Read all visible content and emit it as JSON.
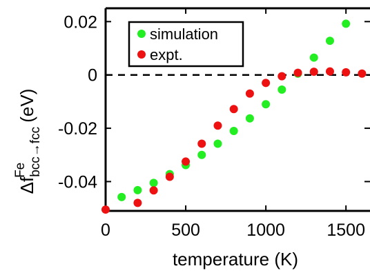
{
  "chart_data": {
    "type": "scatter",
    "title": "",
    "xlabel": "temperature (K)",
    "ylabel": {
      "symbol": "Δf",
      "superscript": "Fe",
      "subscript": "bcc→fcc",
      "unit": "(eV)"
    },
    "xlim": [
      0,
      1650
    ],
    "ylim": [
      -0.051,
      0.025
    ],
    "x_ticks": [
      0,
      500,
      1000,
      1500
    ],
    "x_tick_labels": [
      "0",
      "500",
      "1000",
      "1500"
    ],
    "y_ticks": [
      -0.04,
      -0.02,
      0,
      0.02
    ],
    "y_tick_labels": [
      "-0.04",
      "-0.02",
      "0",
      "0.02"
    ],
    "reference_line": {
      "y": 0,
      "style": "dashed",
      "color": "#000000"
    },
    "legend_position": "top-left",
    "grid": false,
    "series": [
      {
        "name": "simulation",
        "color": "#22ee22",
        "points": [
          [
            100,
            -0.0458
          ],
          [
            200,
            -0.0432
          ],
          [
            300,
            -0.0405
          ],
          [
            400,
            -0.0372
          ],
          [
            500,
            -0.0338
          ],
          [
            600,
            -0.03
          ],
          [
            700,
            -0.0258
          ],
          [
            800,
            -0.021
          ],
          [
            900,
            -0.0163
          ],
          [
            1000,
            -0.011
          ],
          [
            1100,
            -0.0055
          ],
          [
            1200,
            0.0005
          ],
          [
            1300,
            0.0065
          ],
          [
            1400,
            0.0128
          ],
          [
            1500,
            0.0192
          ]
        ]
      },
      {
        "name": "expt.",
        "color": "#ee1111",
        "points": [
          [
            0,
            -0.0505
          ],
          [
            200,
            -0.048
          ],
          [
            300,
            -0.0433
          ],
          [
            400,
            -0.0382
          ],
          [
            500,
            -0.0325
          ],
          [
            600,
            -0.0258
          ],
          [
            700,
            -0.019
          ],
          [
            800,
            -0.0128
          ],
          [
            900,
            -0.007
          ],
          [
            1000,
            -0.003
          ],
          [
            1100,
            -0.0005
          ],
          [
            1200,
            0.0008
          ],
          [
            1300,
            0.0012
          ],
          [
            1400,
            0.0013
          ],
          [
            1500,
            0.001
          ],
          [
            1600,
            0.0005
          ]
        ]
      }
    ]
  }
}
